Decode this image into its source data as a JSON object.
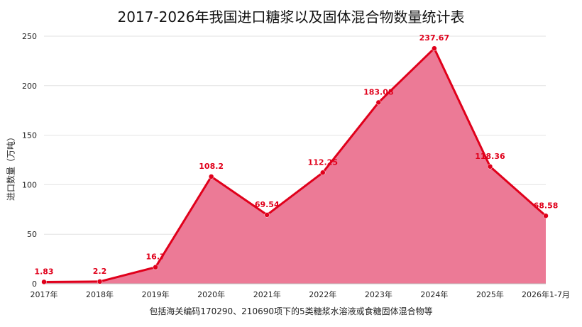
{
  "chart_data": {
    "type": "area",
    "title": "2017-2026年我国进口糖浆以及固体混合物数量统计表",
    "xlabel": "包括海关编码170290、210690项下的5类糖浆水溶液或食糖固体混合物等",
    "ylabel": "进口数量（万吨）",
    "categories": [
      "2017年",
      "2018年",
      "2019年",
      "2020年",
      "2021年",
      "2022年",
      "2023年",
      "2024年",
      "2025年",
      "2026年1-7月"
    ],
    "series": [
      {
        "values": [
          1.83,
          2.2,
          16.7,
          108.2,
          69.54,
          112.25,
          183.08,
          237.67,
          118.36,
          68.58
        ],
        "labels": [
          "1.83",
          "2.2",
          "16.7",
          "108.2",
          "69.54",
          "112.25",
          "183.08",
          "237.67",
          "118.36",
          "68.58"
        ]
      }
    ],
    "ylim": [
      0,
      250
    ],
    "yticks": [
      0,
      50,
      100,
      150,
      200,
      250
    ],
    "grid": true,
    "legend": "none",
    "colors": {
      "line": "#e0001b",
      "fill": "#ec7a96",
      "label": "#e0001b",
      "grid": "#e2e2e2"
    }
  }
}
